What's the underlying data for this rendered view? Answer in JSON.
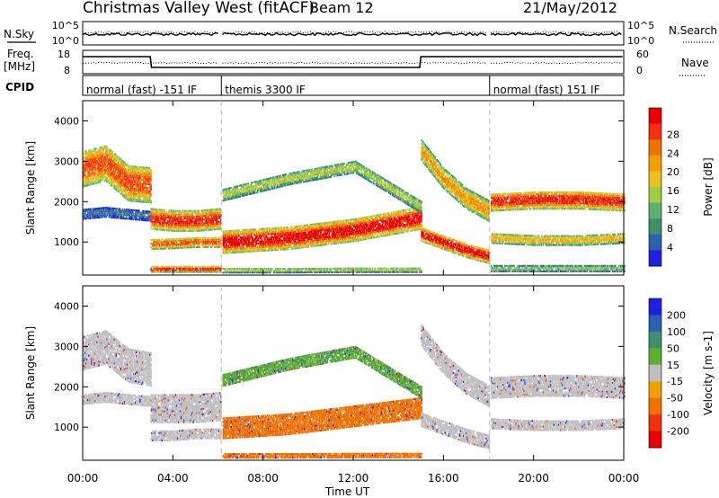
{
  "header": {
    "station": "Christmas Valley West (fitACF)",
    "beam": "Beam 12",
    "date": "21/May/2012"
  },
  "labels": {
    "nsky": "N.Sky",
    "nsearch": "N.Search",
    "freq_top": "Freq.",
    "freq_bottom": "[MHz]",
    "nave": "Nave",
    "cpid": "CPID",
    "nsky_ticks": [
      "10^5",
      "10^0"
    ],
    "nsearch_ticks": [
      "10^5",
      "10^0"
    ],
    "freq_ticks": [
      "18",
      "8"
    ],
    "nave_ticks": [
      "60",
      "0"
    ],
    "xlabel": "Time UT"
  },
  "cpid_segments": [
    {
      "label": "normal (fast) -151 IF",
      "start": 0,
      "end": 6.15
    },
    {
      "label": "themis 3300 IF",
      "start": 6.15,
      "end": 18.05
    },
    {
      "label": "normal (fast) 151 IF",
      "start": 18.05,
      "end": 24
    }
  ],
  "chart_data": [
    {
      "type": "heatmap",
      "panel": "power",
      "ylabel": "Slant Range [km]",
      "xlim": [
        0,
        24
      ],
      "ylim": [
        180,
        4500
      ],
      "yticks": [
        "1000",
        "2000",
        "3000",
        "4000"
      ],
      "xticks": [
        "00:00",
        "04:00",
        "08:00",
        "12:00",
        "16:00",
        "20:00",
        "00:00"
      ],
      "colorbar": {
        "label": "Power [dB]",
        "ticks": [
          "4",
          "8",
          "12",
          "16",
          "20",
          "24",
          "28"
        ],
        "colors": [
          "#1f1fe0",
          "#2b5fb0",
          "#3f8f6a",
          "#5fb070",
          "#9fcf40",
          "#e8c020",
          "#f0a000",
          "#f07000",
          "#f03010",
          "#e80000"
        ]
      },
      "regions": [
        {
          "t": [
            0.0,
            3.0
          ],
          "r_bottom": [
            2350,
            2500,
            2000,
            1950
          ],
          "thickness": 900,
          "level": 24
        },
        {
          "t": [
            0.0,
            3.0
          ],
          "r_bottom": [
            1550,
            1600,
            1550,
            1500
          ],
          "thickness": 250,
          "level": 6
        },
        {
          "t": [
            3.0,
            6.1
          ],
          "r_bottom": [
            1300,
            1250,
            1250,
            1300
          ],
          "thickness": 500,
          "level": 26
        },
        {
          "t": [
            3.0,
            6.1
          ],
          "r_bottom": [
            800,
            820,
            850,
            850
          ],
          "thickness": 250,
          "level": 24
        },
        {
          "t": [
            3.0,
            6.1
          ],
          "r_bottom": [
            230,
            230,
            230,
            230
          ],
          "thickness": 150,
          "level": 26
        },
        {
          "t": [
            6.2,
            15.0
          ],
          "r_bottom": [
            700,
            800,
            1000,
            1300
          ],
          "thickness": 550,
          "level": 28
        },
        {
          "t": [
            6.2,
            15.0
          ],
          "r_bottom": [
            2000,
            2400,
            2700,
            1700
          ],
          "thickness": 300,
          "level": 14
        },
        {
          "t": [
            6.2,
            15.0
          ],
          "r_bottom": [
            220,
            220,
            230,
            230
          ],
          "thickness": 120,
          "level": 14
        },
        {
          "t": [
            15.0,
            18.0
          ],
          "r_bottom": [
            3000,
            2300,
            1800,
            1500
          ],
          "thickness": 500,
          "level": 20
        },
        {
          "t": [
            15.0,
            18.0
          ],
          "r_bottom": [
            1000,
            800,
            600,
            450
          ],
          "thickness": 350,
          "level": 28
        },
        {
          "t": [
            18.1,
            24.0
          ],
          "r_bottom": [
            1750,
            1800,
            1800,
            1750
          ],
          "thickness": 450,
          "level": 26
        },
        {
          "t": [
            18.1,
            24.0
          ],
          "r_bottom": [
            950,
            900,
            900,
            950
          ],
          "thickness": 250,
          "level": 18
        },
        {
          "t": [
            18.1,
            24.0
          ],
          "r_bottom": [
            250,
            250,
            250,
            250
          ],
          "thickness": 150,
          "level": 12
        }
      ]
    },
    {
      "type": "heatmap",
      "panel": "velocity",
      "ylabel": "Slant Range [km]",
      "xlim": [
        0,
        24
      ],
      "ylim": [
        180,
        4500
      ],
      "yticks": [
        "1000",
        "2000",
        "3000",
        "4000"
      ],
      "xticks": [
        "00:00",
        "04:00",
        "08:00",
        "12:00",
        "16:00",
        "20:00",
        "00:00"
      ],
      "colorbar": {
        "label": "Velocity [m s-1]",
        "ticks": [
          "200",
          "100",
          "50",
          "15",
          "-15",
          "-50",
          "-100",
          "-200"
        ],
        "colors": [
          "#1f1fe0",
          "#2b5fb0",
          "#3f8f6a",
          "#5fb030",
          "#bfbfbf",
          "#f0a000",
          "#f07000",
          "#f03010",
          "#e80000"
        ]
      },
      "regions": [
        {
          "t": [
            0.0,
            3.0
          ],
          "r_bottom": [
            2400,
            2550,
            2100,
            2000
          ],
          "thickness": 850,
          "level": 0
        },
        {
          "t": [
            0.0,
            3.0
          ],
          "r_bottom": [
            1550,
            1600,
            1550,
            1500
          ],
          "thickness": 250,
          "level": 0
        },
        {
          "t": [
            3.0,
            6.1
          ],
          "r_bottom": [
            1100,
            1100,
            1100,
            1150
          ],
          "thickness": 700,
          "level": 0
        },
        {
          "t": [
            3.0,
            6.1
          ],
          "r_bottom": [
            650,
            650,
            700,
            700
          ],
          "thickness": 250,
          "level": 0
        },
        {
          "t": [
            6.2,
            15.0
          ],
          "r_bottom": [
            700,
            800,
            1000,
            1200
          ],
          "thickness": 500,
          "level": -40
        },
        {
          "t": [
            6.2,
            15.0
          ],
          "r_bottom": [
            2000,
            2400,
            2700,
            1700
          ],
          "thickness": 300,
          "level": 30
        },
        {
          "t": [
            6.2,
            15.0
          ],
          "r_bottom": [
            220,
            220,
            230,
            230
          ],
          "thickness": 120,
          "level": -40
        },
        {
          "t": [
            15.0,
            18.0
          ],
          "r_bottom": [
            3000,
            2300,
            1800,
            1500
          ],
          "thickness": 500,
          "level": 0
        },
        {
          "t": [
            15.0,
            18.0
          ],
          "r_bottom": [
            1000,
            800,
            600,
            450
          ],
          "thickness": 350,
          "level": 0
        },
        {
          "t": [
            18.1,
            24.0
          ],
          "r_bottom": [
            1700,
            1750,
            1750,
            1700
          ],
          "thickness": 500,
          "level": 0
        },
        {
          "t": [
            18.1,
            24.0
          ],
          "r_bottom": [
            950,
            900,
            900,
            950
          ],
          "thickness": 250,
          "level": 0
        }
      ]
    }
  ]
}
